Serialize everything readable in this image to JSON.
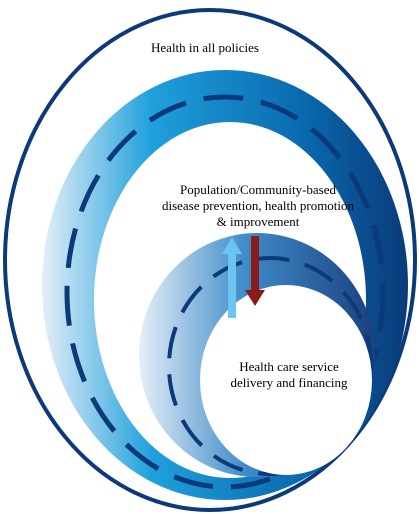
{
  "outer": {
    "label": "Health in all policies"
  },
  "middle": {
    "lines": [
      "Population/Community-based",
      "disease prevention, health promotion",
      "& improvement"
    ]
  },
  "inner": {
    "lines": [
      "Health care service",
      "delivery and financing"
    ]
  }
}
